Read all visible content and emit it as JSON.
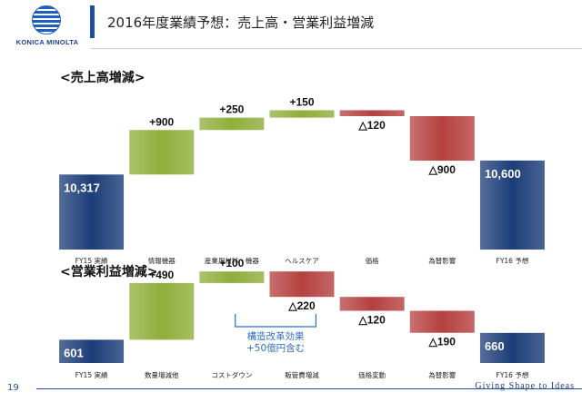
{
  "header": {
    "title": "2016年度業績予想：売上高・営業利益増減",
    "logo_text": "KONICA MINOLTA"
  },
  "footer": {
    "page_number": "19",
    "tagline": "Giving Shape to Ideas"
  },
  "colors": {
    "total": "#1c3d78",
    "increase": "#8fae3a",
    "decrease": "#b5403f",
    "accent": "#1f4f9e"
  },
  "chart_data": [
    {
      "type": "waterfall",
      "title": "<売上高増減>",
      "categories": [
        "FY15 実績",
        "情報機器",
        "産業用材料・機器",
        "ヘルスケア",
        "価格",
        "為替影響",
        "FY16 予想"
      ],
      "values": [
        10317,
        900,
        250,
        150,
        -120,
        -900,
        10600
      ],
      "kinds": [
        "total",
        "increase",
        "increase",
        "increase",
        "decrease",
        "decrease",
        "total"
      ],
      "labels": [
        "10,317",
        "+900",
        "+250",
        "+150",
        "△120",
        "△900",
        "10,600"
      ]
    },
    {
      "type": "waterfall",
      "title": "<営業利益増減>",
      "categories": [
        "FY15 実績",
        "数量増減他",
        "コストダウン",
        "販管費増減",
        "価格変動",
        "為替影響",
        "FY16 予想"
      ],
      "values": [
        601,
        490,
        100,
        -220,
        -120,
        -190,
        660
      ],
      "kinds": [
        "total",
        "increase",
        "increase",
        "decrease",
        "decrease",
        "decrease",
        "total"
      ],
      "labels": [
        "601",
        "+490",
        "+100",
        "△220",
        "△120",
        "△190",
        "660"
      ],
      "annotation": {
        "lines": [
          "構造改革効果",
          "+50億円含む"
        ]
      }
    }
  ]
}
